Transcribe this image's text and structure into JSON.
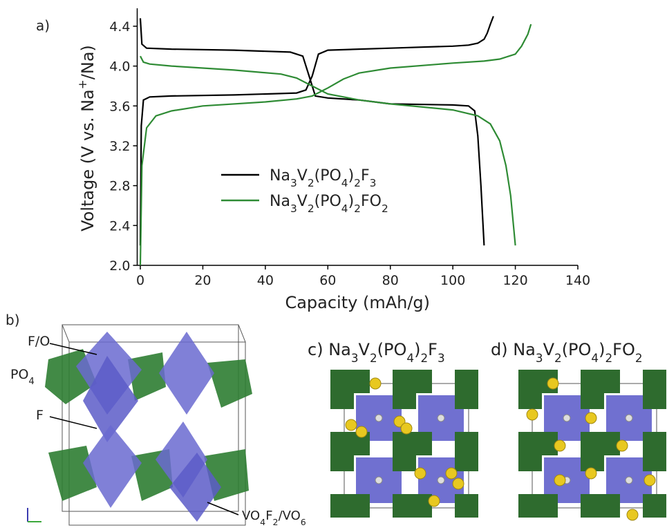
{
  "panels": {
    "a": "a)",
    "b": "b)",
    "c": "c) Na3V2(PO4)2F3",
    "d": "d) Na3V2(PO4)2FO2"
  },
  "structure_labels": {
    "fo": "F/O",
    "po4": "PO4",
    "f": "F",
    "vo": "VO4F2/VO6"
  },
  "chart_data": {
    "type": "line",
    "x_label": "Capacity (mAh/g)",
    "y_label": "Voltage (V vs. Na+/Na)",
    "xlim": [
      -1,
      140
    ],
    "xticks": [
      0,
      20,
      40,
      60,
      80,
      100,
      120,
      140
    ],
    "ylim": [
      2.0,
      4.58
    ],
    "yticks": [
      {
        "value": 2,
        "label": "2.0"
      },
      2.4,
      2.8,
      3.2,
      3.6,
      {
        "value": 4,
        "label": "4.0"
      },
      4.4
    ],
    "legend": "center-left",
    "series": [
      {
        "name": "Na3V2(PO4)2F3",
        "color": "#000000",
        "x": [
          0,
          0.3,
          1,
          3,
          10,
          30,
          50,
          53,
          55,
          57,
          60,
          80,
          100,
          105,
          108,
          110,
          111,
          112,
          113,
          null,
          0,
          0.5,
          2,
          10,
          30,
          48,
          52,
          54,
          56,
          60,
          70,
          75,
          80,
          100,
          105,
          107,
          108,
          109,
          110
        ],
        "values": [
          2.2,
          3.4,
          3.66,
          3.69,
          3.7,
          3.71,
          3.73,
          3.76,
          3.9,
          4.12,
          4.16,
          4.18,
          4.2,
          4.21,
          4.23,
          4.27,
          4.33,
          4.42,
          4.5,
          null,
          4.48,
          4.22,
          4.18,
          4.17,
          4.16,
          4.14,
          4.1,
          3.9,
          3.7,
          3.68,
          3.66,
          3.64,
          3.62,
          3.61,
          3.6,
          3.55,
          3.3,
          2.8,
          2.2
        ]
      },
      {
        "name": "Na3V2(PO4)2FO2",
        "color": "#2e8b34",
        "x": [
          0,
          0.5,
          2,
          5,
          10,
          20,
          40,
          50,
          55,
          60,
          65,
          70,
          80,
          100,
          110,
          115,
          120,
          122,
          124,
          125,
          null,
          0,
          1,
          3,
          10,
          30,
          45,
          50,
          55,
          60,
          70,
          80,
          100,
          108,
          112,
          115,
          117,
          118.5,
          120
        ],
        "values": [
          2.0,
          3.0,
          3.38,
          3.5,
          3.55,
          3.6,
          3.64,
          3.67,
          3.7,
          3.78,
          3.87,
          3.93,
          3.98,
          4.03,
          4.05,
          4.07,
          4.12,
          4.2,
          4.32,
          4.42,
          null,
          4.1,
          4.04,
          4.02,
          4.0,
          3.96,
          3.92,
          3.88,
          3.8,
          3.72,
          3.66,
          3.62,
          3.56,
          3.5,
          3.42,
          3.25,
          3.0,
          2.7,
          2.2
        ]
      }
    ]
  }
}
